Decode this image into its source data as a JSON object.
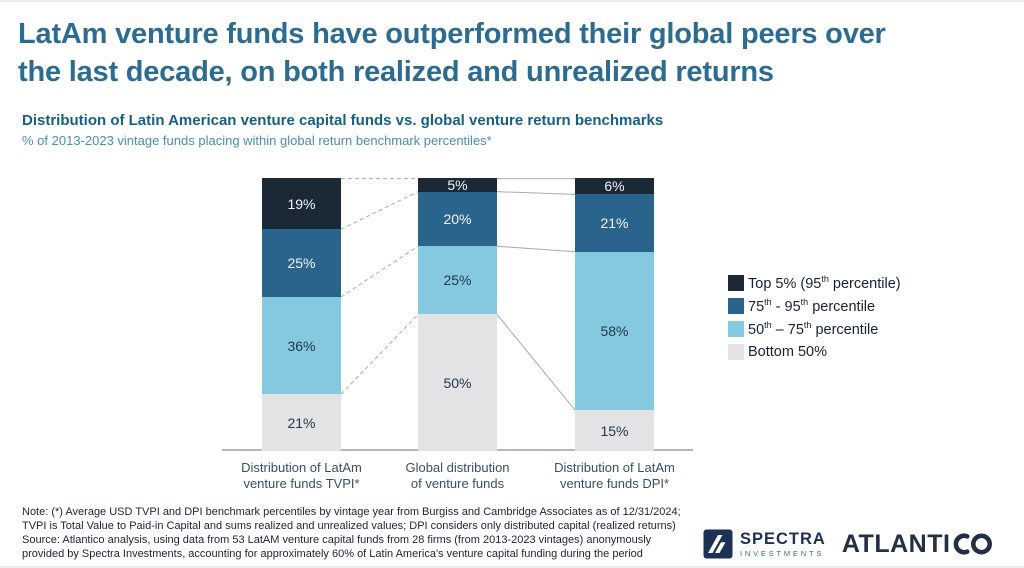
{
  "header": {
    "title_lines": [
      "LatAm venture funds have outperformed their global peers over",
      "the last decade, on both realized and unrealized returns"
    ],
    "subtitle": "Distribution of Latin American venture capital funds vs. global venture return benchmarks",
    "subtitle_note": "% of 2013-2023 vintage funds placing within global return benchmark percentiles*"
  },
  "chart_data": {
    "type": "bar",
    "variant": "stacked-100-percent",
    "unit": "%",
    "grid": false,
    "legend_position": "right",
    "categories": [
      [
        "Distribution of LatAm",
        "venture funds TVPI*"
      ],
      [
        "Global distribution",
        "of venture funds"
      ],
      [
        "Distribution of LatAm",
        "venture funds DPI*"
      ]
    ],
    "series": [
      {
        "name": "Top 5% (95th percentile)",
        "color": "#1b2936",
        "label_color": "#f2f4f6",
        "values": [
          19,
          5,
          6
        ]
      },
      {
        "name": "75th - 95th percentile",
        "color": "#2a648c",
        "label_color": "#f2f4f6",
        "values": [
          25,
          20,
          21
        ]
      },
      {
        "name": "50th – 75th percentile",
        "color": "#85c9e0",
        "label_color": "#23374a",
        "values": [
          36,
          25,
          58
        ]
      },
      {
        "name": "Bottom 50%",
        "color": "#e3e3e5",
        "label_color": "#23374a",
        "values": [
          21,
          50,
          15
        ]
      }
    ],
    "connectors": {
      "between_bars_1_2": "dashed",
      "between_bars_2_3": "solid"
    }
  },
  "note": {
    "lines": [
      "Note: (*) Average USD TVPI and DPI benchmark percentiles by vintage year from Burgiss and Cambridge Associates as of 12/31/2024;",
      "TVPI is Total Value to Paid-in Capital and sums realized and unrealized values; DPI considers only distributed capital (realized returns)",
      "Source: Atlantico analysis, using data from 53 LatAM venture capital funds from 28 firms (from 2013-2023 vintages) anonymously",
      "provided by Spectra Investments, accounting for approximately 60% of Latin America's venture capital funding during the period"
    ]
  },
  "footer": {
    "spectra": {
      "name": "SPECTRA",
      "subname": "INVESTMENTS"
    },
    "atlantico": {
      "name": "ATLANTICO"
    }
  },
  "colors": {
    "title": "#2d6c91",
    "subtitle": "#156083",
    "subtitle_note": "#4d8cb0",
    "axis_label": "#3e4e61",
    "note": "#1c2430",
    "connector": "#a6abb3",
    "axis": "#b4b9bf",
    "legend_text": "#18222e",
    "logo_navy": "#1d3154",
    "logo_text": "#232f44",
    "logo_sub": "#3a6a99"
  }
}
